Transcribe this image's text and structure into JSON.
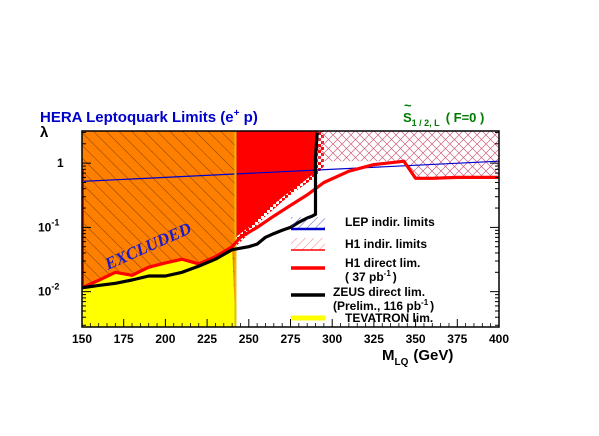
{
  "chart_data": {
    "type": "line",
    "title": "HERA Leptoquark Limits (e",
    "title_sup": "+",
    "title_end": " p)",
    "subtitle_main": "S",
    "subtitle_tilde": "~",
    "subtitle_sub": "1 / 2, L",
    "subtitle_end": "( F=0 )",
    "xlabel_main": "M",
    "xlabel_sub": "LQ",
    "xlabel_unit": "(GeV)",
    "ylabel": "λ",
    "xlim": [
      150,
      400
    ],
    "ylim_log10": [
      -2.55,
      0.5
    ],
    "x_ticks": [
      "150",
      "175",
      "200",
      "225",
      "250",
      "275",
      "300",
      "325",
      "350",
      "375",
      "400"
    ],
    "x_tick_values": [
      150,
      175,
      200,
      225,
      250,
      275,
      300,
      325,
      350,
      375,
      400
    ],
    "y_ticks": [
      {
        "base": "1",
        "exp": "",
        "value": 1
      },
      {
        "base": "10",
        "exp": "-1",
        "value": 0.1
      },
      {
        "base": "10",
        "exp": "-2",
        "value": 0.01
      }
    ],
    "annotation": "EXCLUDED",
    "colors": {
      "orange": "#ff8000",
      "yellow": "#ffff00",
      "red": "#ff0000",
      "blue": "#0000cc",
      "black": "#000000",
      "pink": "#d06080",
      "white": "#ffffff"
    },
    "series": [
      {
        "name": "LEP indir. limits",
        "color": "#0000cc",
        "x": [
          150,
          400
        ],
        "y": [
          0.52,
          1.07
        ]
      },
      {
        "name": "H1 indir. limits",
        "color": "#ff0000",
        "x": [
          150,
          400
        ],
        "y": [
          1.07,
          1.07
        ]
      },
      {
        "name": "H1 direct lim.",
        "name_line2": "( 37 pb",
        "name_line2_sup": "-1",
        "name_line2_end": ")",
        "color": "#ff0000",
        "x": [
          150,
          160,
          170,
          180,
          190,
          200,
          210,
          220,
          230,
          240,
          245,
          255,
          265,
          275,
          285,
          295,
          310,
          325,
          340,
          343,
          350,
          360,
          375,
          390,
          400
        ],
        "y": [
          0.0115,
          0.015,
          0.02,
          0.018,
          0.024,
          0.028,
          0.032,
          0.027,
          0.035,
          0.05,
          0.07,
          0.1,
          0.15,
          0.22,
          0.32,
          0.5,
          0.75,
          0.95,
          1.05,
          1.07,
          0.58,
          0.58,
          0.6,
          0.6,
          0.6
        ]
      },
      {
        "name": "ZEUS direct lim.",
        "name_line2": "(Prelim., 116 pb",
        "name_line2_sup": "-1",
        "name_line2_end": ")",
        "color": "#000000",
        "x": [
          150,
          160,
          170,
          180,
          190,
          200,
          210,
          220,
          230,
          240,
          250,
          255,
          260,
          265,
          270,
          275,
          280,
          285,
          288,
          290,
          290,
          291
        ],
        "y": [
          0.0115,
          0.0125,
          0.0135,
          0.0152,
          0.0175,
          0.0175,
          0.02,
          0.025,
          0.032,
          0.045,
          0.05,
          0.055,
          0.07,
          0.08,
          0.09,
          0.1,
          0.12,
          0.14,
          0.15,
          0.16,
          1.2,
          3.0
        ]
      },
      {
        "name": "TEVATRON lim.",
        "color": "#ffff00",
        "x": [
          150,
          242
        ],
        "y": [
          0.003,
          0.003
        ]
      }
    ],
    "legend_position": "lower-right"
  }
}
